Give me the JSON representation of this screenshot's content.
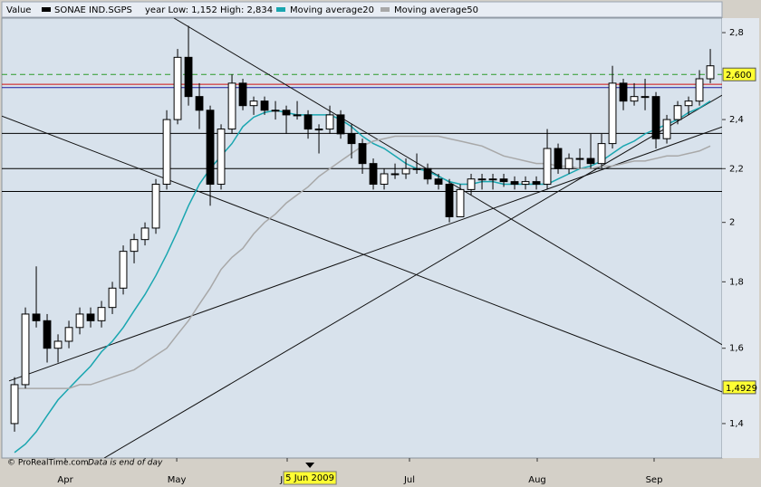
{
  "chart_data": {
    "type": "candlestick",
    "legend_label": "Value",
    "instrument": "SONAE IND.SGPS",
    "range_text": "year Low: 1,152 High: 2,834",
    "candles": {
      "name": "SONAE IND.SGPS",
      "color": "#000000",
      "open": [
        1.4,
        1.5,
        1.7,
        1.68,
        1.6,
        1.62,
        1.66,
        1.7,
        1.68,
        1.72,
        1.78,
        1.9,
        1.94,
        1.98,
        2.14,
        2.4,
        2.68,
        2.5,
        2.44,
        2.14,
        2.36,
        2.56,
        2.46,
        2.48,
        2.44,
        2.44,
        2.42,
        2.42,
        2.36,
        2.36,
        2.42,
        2.34,
        2.3,
        2.22,
        2.14,
        2.18,
        2.18,
        2.2,
        2.2,
        2.16,
        2.14,
        2.02,
        2.12,
        2.16,
        2.16,
        2.16,
        2.15,
        2.14,
        2.15,
        2.14,
        2.28,
        2.2,
        2.24,
        2.24,
        2.22,
        2.3,
        2.56,
        2.48,
        2.5,
        2.5,
        2.32,
        2.4,
        2.46,
        2.48,
        2.58
      ],
      "high": [
        1.52,
        1.72,
        1.85,
        1.7,
        1.64,
        1.68,
        1.72,
        1.72,
        1.74,
        1.8,
        1.92,
        1.96,
        2.0,
        2.16,
        2.44,
        2.72,
        2.834,
        2.56,
        2.46,
        2.38,
        2.6,
        2.58,
        2.5,
        2.5,
        2.48,
        2.46,
        2.48,
        2.44,
        2.38,
        2.46,
        2.44,
        2.38,
        2.32,
        2.24,
        2.2,
        2.22,
        2.24,
        2.26,
        2.22,
        2.18,
        2.16,
        2.14,
        2.18,
        2.18,
        2.18,
        2.18,
        2.17,
        2.17,
        2.17,
        2.36,
        2.3,
        2.26,
        2.28,
        2.34,
        2.34,
        2.64,
        2.58,
        2.56,
        2.58,
        2.52,
        2.42,
        2.48,
        2.5,
        2.62,
        2.72
      ],
      "low": [
        1.38,
        1.49,
        1.66,
        1.56,
        1.56,
        1.6,
        1.64,
        1.66,
        1.66,
        1.7,
        1.76,
        1.86,
        1.92,
        1.96,
        2.12,
        2.38,
        2.46,
        2.36,
        2.06,
        2.12,
        2.34,
        2.44,
        2.42,
        2.42,
        2.4,
        2.34,
        2.4,
        2.32,
        2.26,
        2.34,
        2.32,
        2.24,
        2.18,
        2.12,
        2.12,
        2.16,
        2.16,
        2.18,
        2.14,
        2.12,
        2.0,
        2.02,
        2.1,
        2.12,
        2.12,
        2.13,
        2.12,
        2.12,
        2.12,
        2.12,
        2.18,
        2.18,
        2.2,
        2.2,
        2.2,
        2.28,
        2.44,
        2.46,
        2.44,
        2.28,
        2.3,
        2.38,
        2.42,
        2.46,
        2.56
      ],
      "close": [
        1.5,
        1.7,
        1.68,
        1.6,
        1.62,
        1.66,
        1.7,
        1.68,
        1.72,
        1.78,
        1.9,
        1.94,
        1.98,
        2.14,
        2.4,
        2.68,
        2.5,
        2.44,
        2.14,
        2.36,
        2.56,
        2.46,
        2.48,
        2.44,
        2.44,
        2.42,
        2.42,
        2.36,
        2.36,
        2.42,
        2.34,
        2.3,
        2.22,
        2.14,
        2.18,
        2.18,
        2.2,
        2.2,
        2.16,
        2.14,
        2.02,
        2.12,
        2.16,
        2.16,
        2.16,
        2.15,
        2.14,
        2.15,
        2.14,
        2.28,
        2.2,
        2.24,
        2.24,
        2.22,
        2.3,
        2.56,
        2.48,
        2.5,
        2.5,
        2.32,
        2.4,
        2.46,
        2.48,
        2.58,
        2.64
      ]
    },
    "series": [
      {
        "name": "Moving average20",
        "color": "#1aa6b0",
        "values": [
          1.33,
          1.35,
          1.38,
          1.42,
          1.46,
          1.49,
          1.52,
          1.55,
          1.59,
          1.62,
          1.66,
          1.71,
          1.76,
          1.82,
          1.89,
          1.97,
          2.06,
          2.14,
          2.2,
          2.25,
          2.3,
          2.37,
          2.41,
          2.43,
          2.44,
          2.43,
          2.42,
          2.42,
          2.42,
          2.42,
          2.4,
          2.37,
          2.33,
          2.3,
          2.28,
          2.25,
          2.22,
          2.2,
          2.19,
          2.17,
          2.15,
          2.14,
          2.14,
          2.15,
          2.15,
          2.14,
          2.14,
          2.14,
          2.14,
          2.14,
          2.16,
          2.18,
          2.2,
          2.21,
          2.23,
          2.26,
          2.29,
          2.31,
          2.34,
          2.36,
          2.38,
          2.4,
          2.43,
          2.45,
          2.48
        ]
      },
      {
        "name": "Moving average50",
        "color": "#a8a8a8",
        "values": [
          1.49,
          1.49,
          1.49,
          1.49,
          1.49,
          1.49,
          1.5,
          1.5,
          1.51,
          1.52,
          1.53,
          1.54,
          1.56,
          1.58,
          1.6,
          1.64,
          1.68,
          1.73,
          1.78,
          1.84,
          1.88,
          1.91,
          1.96,
          2.0,
          2.03,
          2.07,
          2.1,
          2.13,
          2.17,
          2.2,
          2.23,
          2.26,
          2.29,
          2.31,
          2.32,
          2.33,
          2.33,
          2.33,
          2.33,
          2.33,
          2.32,
          2.31,
          2.3,
          2.29,
          2.27,
          2.25,
          2.24,
          2.23,
          2.22,
          2.22,
          2.21,
          2.21,
          2.2,
          2.2,
          2.21,
          2.21,
          2.22,
          2.23,
          2.23,
          2.24,
          2.25,
          2.25,
          2.26,
          2.27,
          2.29
        ]
      }
    ],
    "horizontal_lines": [
      {
        "value": 2.6,
        "color": "#2a9a2a",
        "dashed": true
      },
      {
        "value": 2.555,
        "color": "#d01010",
        "dashed": false
      },
      {
        "value": 2.54,
        "color": "#1a1aa0",
        "dashed": false
      },
      {
        "value": 2.342,
        "color": "#000000",
        "dashed": false
      },
      {
        "value": 2.2,
        "color": "#000000",
        "dashed": false
      },
      {
        "value": 2.113,
        "color": "#000000",
        "dashed": false
      }
    ],
    "trend_lines": [
      {
        "x": [
          14.67,
          65.08
        ],
        "y": [
          2.873,
          1.61
        ]
      },
      {
        "x": [
          -1.17,
          65.08
        ],
        "y": [
          2.415,
          1.481
        ]
      },
      {
        "x": [
          -0.5,
          65.08
        ],
        "y": [
          1.51,
          2.369
        ]
      },
      {
        "x": [
          8.25,
          65.08
        ],
        "y": [
          1.317,
          2.506
        ]
      }
    ],
    "xlim": [
      -1.17,
      65.08
    ],
    "ylim": [
      1.317,
      2.873
    ],
    "log_scale": true,
    "xticks": [
      {
        "value": 4.67,
        "label": "Apr"
      },
      {
        "value": 14.92,
        "label": "May"
      },
      {
        "value": 25.08,
        "label": "Jun"
      },
      {
        "value": 36.33,
        "label": "Jul"
      },
      {
        "value": 48.08,
        "label": "Aug"
      },
      {
        "value": 58.83,
        "label": "Sep"
      }
    ],
    "yticks": [
      {
        "value": 1.4,
        "label": "1,4"
      },
      {
        "value": 1.6,
        "label": "1,6"
      },
      {
        "value": 1.8,
        "label": "1,8"
      },
      2,
      {
        "value": 2.2,
        "label": "2,2"
      },
      {
        "value": 2.4,
        "label": "2,4"
      },
      {
        "value": 2.8,
        "label": "2,8"
      }
    ],
    "cursor": {
      "value": 27.17,
      "label": "5 Jun 2009"
    },
    "price_labels": [
      {
        "value": 2.6,
        "label": "2,600"
      },
      {
        "value": 1.4929,
        "label": "1,4929"
      }
    ],
    "footer": {
      "copyright": "© ProRealTime.com",
      "note": "Data is end of day"
    }
  }
}
